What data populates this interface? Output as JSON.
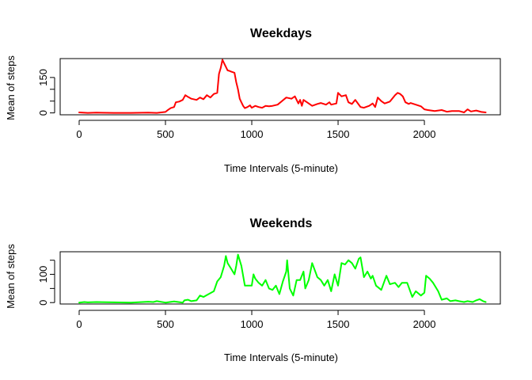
{
  "chart_data": [
    {
      "type": "line",
      "title": "Weekdays",
      "xlabel": "Time Intervals (5-minute)",
      "ylabel": "Mean of steps",
      "xlim": [
        -110,
        2440
      ],
      "ylim": [
        -8,
        230
      ],
      "xticks": [
        0,
        500,
        1000,
        1500,
        2000
      ],
      "yticks": [
        0,
        50,
        100,
        150
      ],
      "ytick_labels": [
        "0",
        "",
        "",
        "150"
      ],
      "grid": false,
      "color": "#ff0000",
      "series": [
        {
          "x": [
            0,
            50,
            100,
            200,
            300,
            400,
            450,
            500,
            510,
            530,
            550,
            560,
            580,
            600,
            615,
            630,
            650,
            680,
            700,
            720,
            740,
            760,
            780,
            800,
            810,
            820,
            830,
            840,
            850,
            860,
            870,
            880,
            900,
            910,
            920,
            930,
            940,
            950,
            960,
            975,
            990,
            1000,
            1020,
            1040,
            1060,
            1080,
            1100,
            1120,
            1150,
            1200,
            1230,
            1250,
            1270,
            1280,
            1290,
            1300,
            1330,
            1350,
            1380,
            1400,
            1430,
            1450,
            1460,
            1490,
            1500,
            1520,
            1545,
            1560,
            1580,
            1600,
            1630,
            1650,
            1680,
            1700,
            1715,
            1730,
            1750,
            1770,
            1800,
            1830,
            1845,
            1860,
            1875,
            1890,
            1910,
            1920,
            1950,
            1980,
            2000,
            2020,
            2040,
            2060,
            2100,
            2130,
            2160,
            2200,
            2230,
            2250,
            2270,
            2300,
            2330,
            2355
          ],
          "y": [
            2,
            0,
            1,
            0,
            0,
            1,
            0,
            4,
            10,
            20,
            25,
            45,
            48,
            55,
            75,
            68,
            60,
            55,
            65,
            58,
            75,
            65,
            80,
            85,
            165,
            190,
            225,
            210,
            195,
            180,
            178,
            175,
            170,
            130,
            100,
            60,
            45,
            30,
            20,
            25,
            32,
            22,
            30,
            25,
            22,
            30,
            28,
            30,
            35,
            65,
            60,
            70,
            40,
            55,
            30,
            55,
            40,
            30,
            38,
            42,
            35,
            45,
            35,
            40,
            85,
            70,
            75,
            45,
            38,
            55,
            25,
            22,
            30,
            40,
            25,
            65,
            50,
            40,
            48,
            75,
            85,
            80,
            70,
            45,
            38,
            42,
            35,
            28,
            15,
            12,
            10,
            8,
            12,
            5,
            8,
            8,
            2,
            15,
            6,
            10,
            4,
            2
          ]
        }
      ]
    },
    {
      "type": "line",
      "title": "Weekends",
      "xlabel": "Time Intervals (5-minute)",
      "ylabel": "Mean of steps",
      "xlim": [
        -110,
        2440
      ],
      "ylim": [
        -5,
        180
      ],
      "xticks": [
        0,
        500,
        1000,
        1500,
        2000
      ],
      "yticks": [
        0,
        50,
        100,
        150
      ],
      "ytick_labels": [
        "0",
        "",
        "100",
        ""
      ],
      "grid": false,
      "color": "#00ff00",
      "series": [
        {
          "x": [
            0,
            30,
            50,
            100,
            200,
            300,
            400,
            430,
            450,
            500,
            550,
            600,
            610,
            630,
            650,
            680,
            700,
            720,
            750,
            780,
            800,
            820,
            840,
            850,
            860,
            880,
            900,
            910,
            920,
            940,
            960,
            980,
            1000,
            1010,
            1020,
            1040,
            1060,
            1080,
            1100,
            1120,
            1140,
            1160,
            1180,
            1200,
            1205,
            1220,
            1240,
            1260,
            1280,
            1300,
            1310,
            1330,
            1350,
            1380,
            1400,
            1420,
            1440,
            1460,
            1480,
            1500,
            1520,
            1540,
            1560,
            1580,
            1600,
            1620,
            1630,
            1650,
            1670,
            1690,
            1700,
            1720,
            1750,
            1780,
            1800,
            1830,
            1850,
            1870,
            1900,
            1930,
            1950,
            1980,
            2000,
            2010,
            2030,
            2050,
            2080,
            2100,
            2130,
            2150,
            2180,
            2200,
            2230,
            2250,
            2280,
            2300,
            2320,
            2340,
            2355
          ],
          "y": [
            0,
            2,
            1,
            2,
            1,
            0,
            3,
            2,
            5,
            0,
            4,
            0,
            8,
            10,
            5,
            8,
            25,
            20,
            30,
            40,
            75,
            90,
            130,
            165,
            140,
            120,
            100,
            130,
            170,
            130,
            60,
            60,
            60,
            100,
            85,
            70,
            60,
            80,
            50,
            45,
            60,
            30,
            75,
            110,
            150,
            50,
            25,
            80,
            80,
            110,
            50,
            80,
            140,
            90,
            80,
            60,
            80,
            40,
            100,
            60,
            140,
            135,
            150,
            140,
            120,
            155,
            160,
            90,
            110,
            85,
            95,
            60,
            45,
            95,
            65,
            70,
            55,
            70,
            70,
            20,
            40,
            25,
            35,
            95,
            85,
            70,
            40,
            10,
            15,
            5,
            8,
            5,
            2,
            5,
            2,
            8,
            12,
            5,
            2
          ]
        }
      ]
    }
  ]
}
